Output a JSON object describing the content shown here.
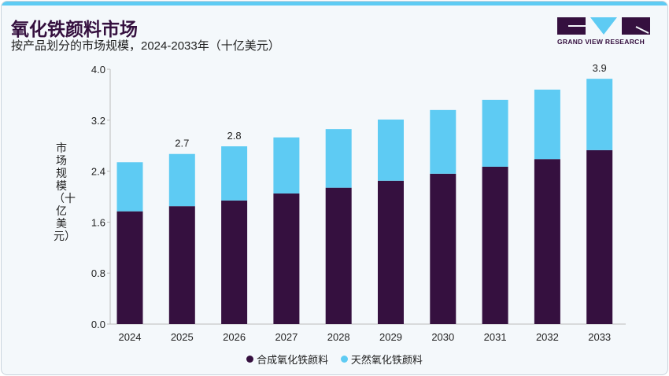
{
  "header": {
    "title": "氧化铁颜料市场",
    "subtitle": "按产品划分的市场规模，2024-2033年（十亿美元）",
    "logo_text": "GRAND VIEW RESEARCH"
  },
  "colors": {
    "synthetic": "#35103f",
    "natural": "#5ecbf3",
    "accent": "#5ecbf3"
  },
  "chart_data": {
    "type": "bar",
    "stacked": true,
    "categories": [
      "2024",
      "2025",
      "2026",
      "2027",
      "2028",
      "2029",
      "2030",
      "2031",
      "2032",
      "2033"
    ],
    "series": [
      {
        "name": "合成氧化铁颜料",
        "values": [
          1.77,
          1.85,
          1.94,
          2.05,
          2.14,
          2.25,
          2.36,
          2.47,
          2.59,
          2.73
        ]
      },
      {
        "name": "天然氧化铁颜料",
        "values": [
          0.77,
          0.82,
          0.85,
          0.88,
          0.92,
          0.96,
          1.0,
          1.05,
          1.09,
          1.12
        ]
      }
    ],
    "data_labels": {
      "2025": "2.7",
      "2026": "2.8",
      "2033": "3.9"
    },
    "ylabel": "市场规模（十亿美元）",
    "ylim": [
      0,
      4.0
    ],
    "yticks": [
      "0.0",
      "0.8",
      "1.6",
      "2.4",
      "3.2",
      "4.0"
    ],
    "grid": false,
    "legend": "bottom"
  }
}
